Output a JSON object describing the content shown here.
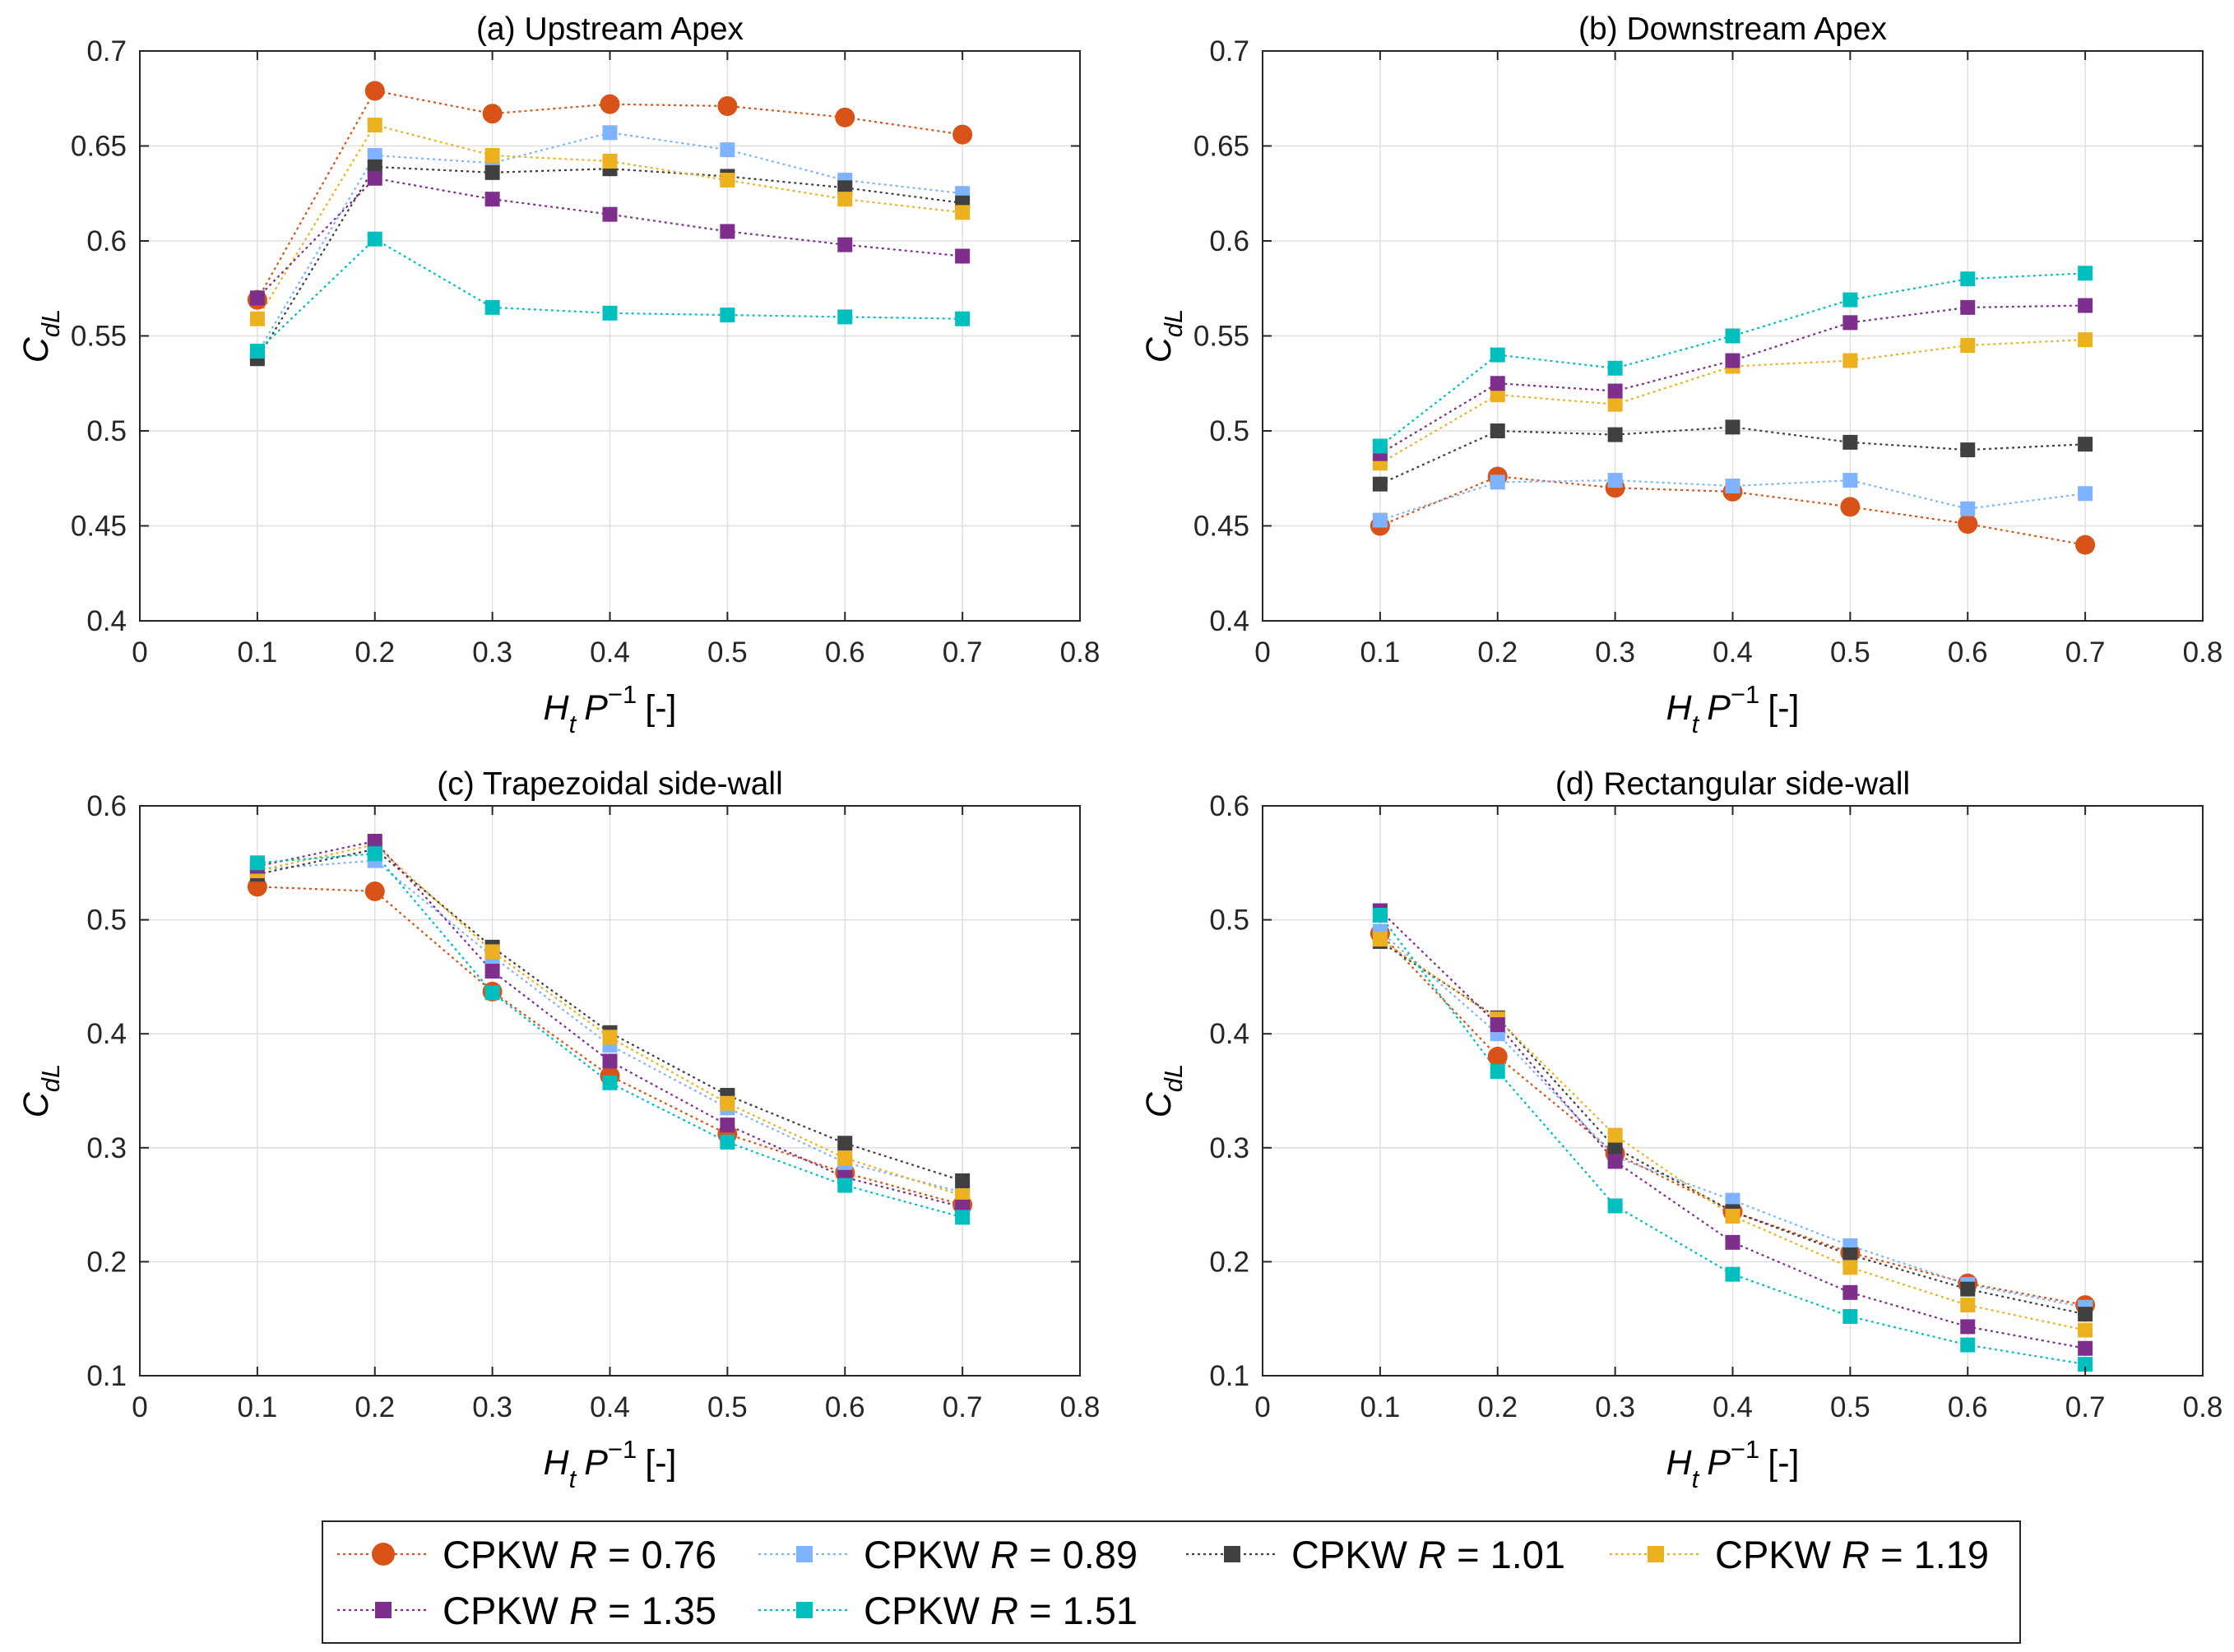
{
  "chart_data": [
    {
      "type": "line",
      "title": "(a) Upstream Apex",
      "xlabel": "H_t P^-1 [-]",
      "ylabel": "C_dL",
      "xlim": [
        0,
        0.8
      ],
      "ylim": [
        0.4,
        0.7
      ],
      "xticks": [
        "0",
        "0.1",
        "0.2",
        "0.3",
        "0.4",
        "0.5",
        "0.6",
        "0.7",
        "0.8"
      ],
      "yticks": [
        "0.4",
        "0.45",
        "0.5",
        "0.55",
        "0.6",
        "0.65",
        "0.7"
      ],
      "grid": true,
      "x": [
        0.1,
        0.2,
        0.3,
        0.4,
        0.5,
        0.6,
        0.7
      ],
      "series": [
        {
          "name": "CPKW R = 0.76",
          "values": [
            0.569,
            0.679,
            0.667,
            0.672,
            0.671,
            0.665,
            0.656
          ]
        },
        {
          "name": "CPKW R = 0.89",
          "values": [
            0.541,
            0.645,
            0.641,
            0.657,
            0.648,
            0.632,
            0.625
          ]
        },
        {
          "name": "CPKW R = 1.01",
          "values": [
            0.538,
            0.639,
            0.636,
            0.638,
            0.634,
            0.628,
            0.62
          ]
        },
        {
          "name": "CPKW R = 1.19",
          "values": [
            0.559,
            0.661,
            0.645,
            0.642,
            0.632,
            0.622,
            0.615
          ]
        },
        {
          "name": "CPKW R = 1.35",
          "values": [
            0.57,
            0.633,
            0.622,
            0.614,
            0.605,
            0.598,
            0.592
          ]
        },
        {
          "name": "CPKW R = 1.51",
          "values": [
            0.542,
            0.601,
            0.565,
            0.562,
            0.561,
            0.56,
            0.559
          ]
        }
      ]
    },
    {
      "type": "line",
      "title": "(b) Downstream Apex",
      "xlabel": "H_t P^-1 [-]",
      "ylabel": "C_dL",
      "xlim": [
        0,
        0.8
      ],
      "ylim": [
        0.4,
        0.7
      ],
      "xticks": [
        "0",
        "0.1",
        "0.2",
        "0.3",
        "0.4",
        "0.5",
        "0.6",
        "0.7",
        "0.8"
      ],
      "yticks": [
        "0.4",
        "0.45",
        "0.5",
        "0.55",
        "0.6",
        "0.65",
        "0.7"
      ],
      "grid": true,
      "x": [
        0.1,
        0.2,
        0.3,
        0.4,
        0.5,
        0.6,
        0.7
      ],
      "series": [
        {
          "name": "CPKW R = 0.76",
          "values": [
            0.45,
            0.476,
            0.47,
            0.468,
            0.46,
            0.451,
            0.44
          ]
        },
        {
          "name": "CPKW R = 0.89",
          "values": [
            0.453,
            0.473,
            0.474,
            0.471,
            0.474,
            0.459,
            0.467
          ]
        },
        {
          "name": "CPKW R = 1.01",
          "values": [
            0.472,
            0.5,
            0.498,
            0.502,
            0.494,
            0.49,
            0.493
          ]
        },
        {
          "name": "CPKW R = 1.19",
          "values": [
            0.483,
            0.519,
            0.514,
            0.534,
            0.537,
            0.545,
            0.548
          ]
        },
        {
          "name": "CPKW R = 1.35",
          "values": [
            0.488,
            0.525,
            0.521,
            0.537,
            0.557,
            0.565,
            0.566
          ]
        },
        {
          "name": "CPKW R = 1.51",
          "values": [
            0.492,
            0.54,
            0.533,
            0.55,
            0.569,
            0.58,
            0.583
          ]
        }
      ]
    },
    {
      "type": "line",
      "title": "(c) Trapezoidal side-wall",
      "xlabel": "H_t P^-1 [-]",
      "ylabel": "C_dL",
      "xlim": [
        0,
        0.8
      ],
      "ylim": [
        0.1,
        0.6
      ],
      "xticks": [
        "0",
        "0.1",
        "0.2",
        "0.3",
        "0.4",
        "0.5",
        "0.6",
        "0.7",
        "0.8"
      ],
      "yticks": [
        "0.1",
        "0.2",
        "0.3",
        "0.4",
        "0.5",
        "0.6"
      ],
      "grid": true,
      "x": [
        0.1,
        0.2,
        0.3,
        0.4,
        0.5,
        0.6,
        0.7
      ],
      "series": [
        {
          "name": "CPKW R = 0.76",
          "values": [
            0.529,
            0.525,
            0.437,
            0.363,
            0.312,
            0.278,
            0.25
          ]
        },
        {
          "name": "CPKW R = 0.89",
          "values": [
            0.544,
            0.552,
            0.468,
            0.39,
            0.335,
            0.287,
            0.261
          ]
        },
        {
          "name": "CPKW R = 1.01",
          "values": [
            0.54,
            0.562,
            0.476,
            0.401,
            0.346,
            0.304,
            0.271
          ]
        },
        {
          "name": "CPKW R = 1.19",
          "values": [
            0.543,
            0.566,
            0.472,
            0.397,
            0.339,
            0.291,
            0.258
          ]
        },
        {
          "name": "CPKW R = 1.35",
          "values": [
            0.547,
            0.569,
            0.455,
            0.376,
            0.32,
            0.274,
            0.248
          ]
        },
        {
          "name": "CPKW R = 1.51",
          "values": [
            0.55,
            0.558,
            0.436,
            0.357,
            0.305,
            0.267,
            0.239
          ]
        }
      ]
    },
    {
      "type": "line",
      "title": "(d) Rectangular side-wall",
      "xlabel": "H_t P^-1 [-]",
      "ylabel": "C_dL",
      "xlim": [
        0,
        0.8
      ],
      "ylim": [
        0.1,
        0.6
      ],
      "xticks": [
        "0",
        "0.1",
        "0.2",
        "0.3",
        "0.4",
        "0.5",
        "0.6",
        "0.7",
        "0.8"
      ],
      "yticks": [
        "0.1",
        "0.2",
        "0.3",
        "0.4",
        "0.5",
        "0.6"
      ],
      "grid": true,
      "x": [
        0.1,
        0.2,
        0.3,
        0.4,
        0.5,
        0.6,
        0.7
      ],
      "series": [
        {
          "name": "CPKW R = 0.76",
          "values": [
            0.488,
            0.38,
            0.295,
            0.244,
            0.208,
            0.181,
            0.162
          ]
        },
        {
          "name": "CPKW R = 0.89",
          "values": [
            0.49,
            0.4,
            0.292,
            0.254,
            0.214,
            0.18,
            0.16
          ]
        },
        {
          "name": "CPKW R = 1.01",
          "values": [
            0.481,
            0.414,
            0.3,
            0.244,
            0.206,
            0.176,
            0.154
          ]
        },
        {
          "name": "CPKW R = 1.19",
          "values": [
            0.483,
            0.413,
            0.311,
            0.24,
            0.195,
            0.162,
            0.14
          ]
        },
        {
          "name": "CPKW R = 1.35",
          "values": [
            0.508,
            0.408,
            0.288,
            0.217,
            0.173,
            0.143,
            0.124
          ]
        },
        {
          "name": "CPKW R = 1.51",
          "values": [
            0.504,
            0.367,
            0.249,
            0.189,
            0.152,
            0.127,
            0.11
          ]
        }
      ]
    }
  ],
  "legend": {
    "position": "bottom-center",
    "entries": [
      {
        "prefix": "CPKW ",
        "var": "R",
        "suffix": " = 0.76",
        "marker": "circle",
        "color": "#D95319"
      },
      {
        "prefix": "CPKW ",
        "var": "R",
        "suffix": " = 0.89",
        "marker": "square",
        "color": "#80B3FF"
      },
      {
        "prefix": "CPKW ",
        "var": "R",
        "suffix": " = 1.01",
        "marker": "square",
        "color": "#404040"
      },
      {
        "prefix": "CPKW ",
        "var": "R",
        "suffix": " = 1.19",
        "marker": "square",
        "color": "#EDB120"
      },
      {
        "prefix": "CPKW ",
        "var": "R",
        "suffix": " = 1.35",
        "marker": "square",
        "color": "#7E2F8E"
      },
      {
        "prefix": "CPKW ",
        "var": "R",
        "suffix": " = 1.51",
        "marker": "square",
        "color": "#00BFBF"
      }
    ]
  },
  "series_styles": [
    {
      "marker": "circle",
      "color": "#D95319"
    },
    {
      "marker": "square",
      "color": "#80B3FF"
    },
    {
      "marker": "square",
      "color": "#404040"
    },
    {
      "marker": "square",
      "color": "#EDB120"
    },
    {
      "marker": "square",
      "color": "#7E2F8E"
    },
    {
      "marker": "square",
      "color": "#00BFBF"
    }
  ]
}
